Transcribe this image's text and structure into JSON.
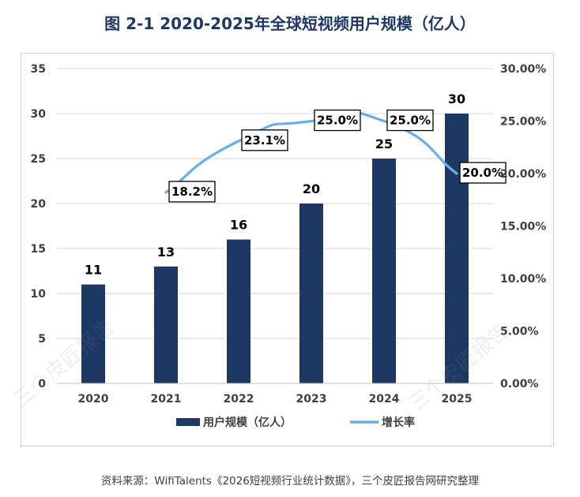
{
  "page": {
    "title": "图 2-1 2020-2025年全球短视频用户规模（亿人）",
    "source": "资料来源：WifiTalents《2026短视频行业统计数据》，三个皮匠报告网研究整理",
    "watermark": "三个皮匠报告"
  },
  "colors": {
    "bar": "#1f3763",
    "line": "#6aaee8",
    "grid": "#d9d9d9",
    "axis_text": "#404040",
    "label_text": "#000000"
  },
  "chart_data": {
    "type": "bar",
    "title": "图 2-1 2020-2025年全球短视频用户规模（亿人）",
    "categories": [
      "2020",
      "2021",
      "2022",
      "2023",
      "2024",
      "2025"
    ],
    "series": [
      {
        "name": "用户规模（亿人）",
        "type": "bar",
        "axis": "left",
        "values": [
          11,
          13,
          16,
          20,
          25,
          30
        ],
        "labels": [
          "11",
          "13",
          "16",
          "20",
          "25",
          "30"
        ]
      },
      {
        "name": "增长率",
        "type": "line",
        "axis": "right",
        "values": [
          null,
          18.2,
          23.1,
          25.0,
          25.0,
          20.0
        ],
        "labels": [
          "",
          "18.2%",
          "23.1%",
          "25.0%",
          "25.0%",
          "20.0%"
        ]
      }
    ],
    "ylim": [
      0,
      35
    ],
    "yticks": [
      0,
      5,
      10,
      15,
      20,
      25,
      30,
      35
    ],
    "ytick_labels": [
      "0",
      "5",
      "10",
      "15",
      "20",
      "25",
      "30",
      "35"
    ],
    "y2lim": [
      0,
      30
    ],
    "y2ticks": [
      0,
      5,
      10,
      15,
      20,
      25,
      30
    ],
    "y2tick_labels": [
      "0.00%",
      "5.00%",
      "10.00%",
      "15.00%",
      "20.00%",
      "25.00%",
      "30.00%"
    ],
    "xlabel": "",
    "ylabel": "",
    "grid": true,
    "legend_position": "bottom"
  }
}
